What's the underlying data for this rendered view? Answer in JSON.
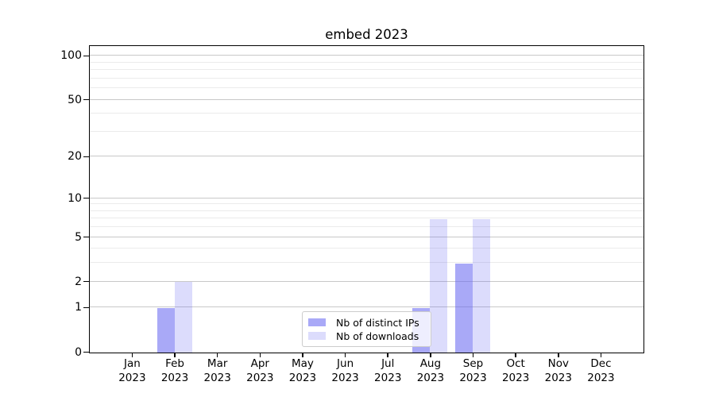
{
  "chart_data": {
    "type": "bar",
    "title": "embed 2023",
    "year_label": "2023",
    "categories": [
      "Jan",
      "Feb",
      "Mar",
      "Apr",
      "May",
      "Jun",
      "Jul",
      "Aug",
      "Sep",
      "Oct",
      "Nov",
      "Dec"
    ],
    "series": [
      {
        "name": "Nb of distinct IPs",
        "slug": "distinct-ips",
        "color": "rgba(102,102,240,0.56)",
        "values": [
          0,
          1,
          0,
          0,
          0,
          0,
          0,
          1,
          3,
          0,
          0,
          0
        ]
      },
      {
        "name": "Nb of downloads",
        "slug": "downloads",
        "color": "rgba(102,102,240,0.23)",
        "values": [
          0,
          2,
          0,
          0,
          0,
          0,
          0,
          7,
          7,
          0,
          0,
          0
        ]
      }
    ],
    "y_scale": "log1p",
    "ylim": [
      0,
      116
    ],
    "y_major_ticks": [
      0,
      1,
      2,
      5,
      10,
      20,
      50,
      100
    ],
    "y_minor_ticks": [
      3,
      4,
      6,
      7,
      8,
      9,
      30,
      40,
      60,
      70,
      80,
      90
    ],
    "grid": true,
    "legend_position": "lower center",
    "colors": {
      "major_grid": "#c8c8c8",
      "minor_grid": "#ebebeb",
      "spine": "#000000",
      "background": "#ffffff"
    }
  }
}
